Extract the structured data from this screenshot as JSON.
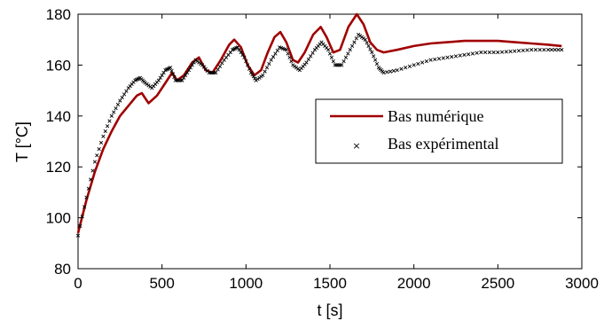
{
  "chart_data": {
    "type": "line",
    "title": "",
    "xlabel": "t [s]",
    "ylabel": "T [°C]",
    "xlim": [
      0,
      3000
    ],
    "ylim": [
      80,
      180
    ],
    "xticks": [
      0,
      500,
      1000,
      1500,
      2000,
      2500,
      3000
    ],
    "yticks": [
      80,
      100,
      120,
      140,
      160,
      180
    ],
    "grid": false,
    "legend_position": "right",
    "series": [
      {
        "name": "Bas numérique",
        "style": "line",
        "color": "#a00000",
        "x": [
          0,
          50,
          100,
          150,
          200,
          250,
          300,
          350,
          380,
          420,
          470,
          520,
          560,
          590,
          630,
          680,
          720,
          760,
          800,
          850,
          900,
          930,
          970,
          1010,
          1050,
          1090,
          1130,
          1170,
          1205,
          1240,
          1280,
          1310,
          1350,
          1400,
          1445,
          1480,
          1520,
          1560,
          1610,
          1660,
          1700,
          1740,
          1780,
          1820,
          1900,
          2000,
          2100,
          2200,
          2300,
          2400,
          2500,
          2600,
          2700,
          2800,
          2880
        ],
        "y": [
          94,
          107,
          118,
          127,
          134,
          140,
          144,
          148,
          149,
          145,
          148,
          153,
          157,
          154,
          156,
          161,
          163,
          158,
          157,
          162,
          168,
          170,
          167,
          160,
          156,
          158,
          165,
          171,
          173,
          169,
          162,
          161,
          165,
          172,
          175,
          171,
          165,
          166,
          175,
          180,
          176,
          169,
          166,
          165,
          166,
          167.5,
          168.5,
          169,
          169.5,
          169.5,
          169.5,
          169,
          168.5,
          168,
          167.5
        ]
      },
      {
        "name": "Bas expérimental",
        "style": "markers",
        "color": "#000000",
        "x": [
          0,
          50,
          100,
          150,
          200,
          250,
          300,
          340,
          370,
          400,
          440,
          480,
          520,
          550,
          580,
          620,
          660,
          700,
          740,
          780,
          820,
          870,
          920,
          950,
          990,
          1030,
          1060,
          1100,
          1150,
          1200,
          1240,
          1280,
          1320,
          1360,
          1410,
          1450,
          1490,
          1530,
          1570,
          1620,
          1670,
          1710,
          1750,
          1790,
          1820,
          1900,
          2000,
          2100,
          2200,
          2300,
          2400,
          2500,
          2600,
          2700,
          2800,
          2880
        ],
        "y": [
          93,
          108,
          122,
          132,
          140,
          146,
          151,
          154,
          155,
          153,
          151,
          154,
          158,
          159,
          154,
          154,
          158,
          162,
          160,
          157,
          157,
          162,
          166,
          167,
          163,
          157,
          154,
          156,
          162,
          167,
          166,
          160,
          158,
          161,
          166,
          169,
          166,
          160,
          160,
          166,
          172,
          170,
          165,
          159,
          157,
          158,
          160,
          162,
          163,
          164,
          165,
          165,
          165.5,
          166,
          166,
          166
        ]
      }
    ]
  }
}
